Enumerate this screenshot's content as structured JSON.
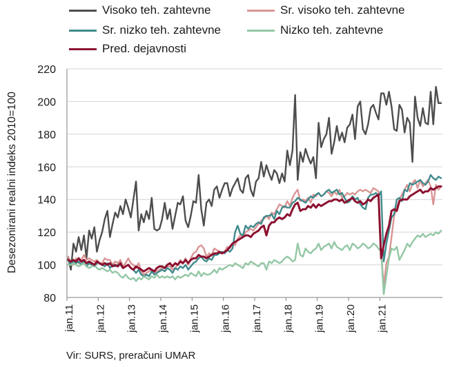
{
  "chart_data": {
    "type": "line",
    "ylabel": "Desezonirani realni indeks 2010=100",
    "source": "Vir: SURS, preračuni UMAR",
    "ylim": [
      80,
      220
    ],
    "yticks": [
      "80",
      "100",
      "120",
      "140",
      "160",
      "180",
      "200",
      "220"
    ],
    "xlim": [
      "jan.11",
      "dec.21"
    ],
    "xtick_labels": [
      "jan.11",
      "jan.12",
      "jan.13",
      "jan.14",
      "jan.15",
      "jan.16",
      "jan.17",
      "jan.18",
      "jan.19",
      "jan.20",
      "jan.21"
    ],
    "grid": true,
    "legend_position": "top",
    "series": [
      {
        "name": "Visoko teh. zahtevne",
        "color": "#4d4d4d",
        "values": [
          104,
          97,
          113,
          108,
          117,
          109,
          118,
          104,
          121,
          116,
          123,
          108,
          115,
          120,
          128,
          133,
          117,
          125,
          132,
          129,
          136,
          131,
          140,
          135,
          129,
          140,
          151,
          121,
          131,
          126,
          133,
          128,
          141,
          122,
          121,
          122,
          128,
          138,
          128,
          134,
          122,
          130,
          138,
          137,
          142,
          127,
          123,
          130,
          139,
          138,
          155,
          134,
          124,
          138,
          140,
          136,
          146,
          148,
          141,
          146,
          150,
          150,
          142,
          147,
          150,
          153,
          146,
          144,
          153,
          155,
          146,
          142,
          151,
          153,
          163,
          154,
          161,
          156,
          152,
          158,
          156,
          150,
          156,
          151,
          170,
          161,
          170,
          204,
          152,
          169,
          163,
          171,
          166,
          162,
          166,
          153,
          187,
          172,
          177,
          180,
          190,
          168,
          175,
          185,
          176,
          181,
          175,
          184,
          186,
          192,
          177,
          197,
          200,
          183,
          180,
          186,
          196,
          198,
          193,
          189,
          205,
          205,
          198,
          206,
          197,
          183,
          182,
          198,
          195,
          181,
          190,
          187,
          163,
          203,
          190,
          185,
          196,
          187,
          186,
          206,
          186,
          209,
          199,
          199
        ]
      },
      {
        "name": "Sr. visoko teh. zahtevne",
        "color": "#d99594",
        "values": [
          105,
          101,
          100,
          104,
          101,
          103,
          106,
          103,
          104,
          103,
          102,
          103,
          101,
          101,
          104,
          103,
          103,
          100,
          102,
          101,
          103,
          99,
          101,
          104,
          101,
          100,
          98,
          101,
          96,
          94,
          95,
          96,
          97,
          95,
          96,
          97,
          98,
          98,
          99,
          99,
          97,
          98,
          100,
          103,
          101,
          104,
          100,
          104,
          107,
          108,
          111,
          112,
          110,
          105,
          107,
          106,
          110,
          109,
          108,
          107,
          108,
          111,
          110,
          113,
          112,
          116,
          118,
          117,
          120,
          121,
          122,
          121,
          123,
          125,
          127,
          128,
          130,
          128,
          132,
          131,
          134,
          137,
          136,
          135,
          139,
          136,
          141,
          144,
          146,
          139,
          140,
          139,
          141,
          138,
          143,
          142,
          144,
          142,
          143,
          145,
          144,
          142,
          145,
          143,
          146,
          141,
          142,
          144,
          143,
          144,
          143,
          145,
          146,
          145,
          146,
          145,
          144,
          147,
          146,
          145,
          108,
          87,
          101,
          105,
          117,
          130,
          135,
          140,
          143,
          146,
          149,
          145,
          150,
          152,
          147,
          152,
          148,
          150,
          152,
          148,
          137,
          149,
          146,
          148
        ]
      },
      {
        "name": "Sr. nizko teh. zahtevne",
        "color": "#3f8a8c",
        "values": [
          103,
          100,
          102,
          101,
          102,
          100,
          102,
          99,
          101,
          100,
          99,
          101,
          101,
          100,
          99,
          101,
          98,
          100,
          99,
          100,
          100,
          98,
          99,
          100,
          98,
          97,
          95,
          97,
          94,
          93,
          94,
          93,
          96,
          94,
          95,
          96,
          97,
          96,
          98,
          97,
          95,
          98,
          97,
          99,
          98,
          100,
          97,
          99,
          101,
          102,
          104,
          105,
          103,
          102,
          104,
          103,
          106,
          106,
          107,
          108,
          107,
          109,
          108,
          110,
          120,
          124,
          119,
          118,
          124,
          122,
          124,
          123,
          125,
          126,
          125,
          129,
          130,
          130,
          131,
          128,
          133,
          131,
          135,
          136,
          135,
          135,
          138,
          139,
          141,
          140,
          139,
          138,
          140,
          142,
          141,
          143,
          144,
          142,
          143,
          145,
          146,
          144,
          145,
          146,
          143,
          144,
          141,
          138,
          139,
          142,
          140,
          141,
          137,
          135,
          134,
          141,
          143,
          143,
          144,
          142,
          145,
          102,
          113,
          121,
          129,
          131,
          140,
          141,
          139,
          146,
          145,
          150,
          149,
          150,
          151,
          152,
          150,
          149,
          151,
          155,
          153,
          152,
          154,
          153
        ]
      },
      {
        "name": "Nizko teh. zahtevne",
        "color": "#93c7a4",
        "values": [
          100,
          100,
          101,
          100,
          99,
          100,
          101,
          99,
          98,
          99,
          100,
          98,
          97,
          98,
          97,
          96,
          97,
          95,
          96,
          95,
          93,
          92,
          94,
          92,
          91,
          92,
          90,
          92,
          91,
          93,
          92,
          91,
          93,
          92,
          94,
          92,
          93,
          92,
          93,
          92,
          93,
          91,
          93,
          92,
          93,
          94,
          93,
          95,
          94,
          93,
          96,
          93,
          95,
          94,
          94,
          95,
          97,
          95,
          98,
          97,
          98,
          99,
          100,
          99,
          101,
          100,
          99,
          98,
          101,
          100,
          102,
          101,
          100,
          99,
          101,
          101,
          97,
          102,
          101,
          103,
          102,
          101,
          102,
          104,
          105,
          104,
          102,
          103,
          113,
          106,
          105,
          110,
          108,
          107,
          109,
          110,
          113,
          109,
          111,
          112,
          113,
          110,
          114,
          111,
          110,
          109,
          111,
          112,
          109,
          113,
          112,
          110,
          111,
          113,
          112,
          110,
          111,
          113,
          112,
          110,
          108,
          82,
          93,
          104,
          110,
          109,
          111,
          103,
          106,
          109,
          113,
          111,
          114,
          116,
          118,
          117,
          119,
          117,
          118,
          119,
          118,
          120,
          119,
          121
        ]
      },
      {
        "name": "Pred. dejavnosti",
        "color": "#8c1030",
        "values": [
          103,
          102,
          103,
          102,
          104,
          102,
          103,
          101,
          102,
          101,
          100,
          102,
          101,
          100,
          101,
          100,
          101,
          99,
          100,
          99,
          101,
          98,
          99,
          100,
          98,
          97,
          99,
          98,
          97,
          96,
          97,
          98,
          97,
          96,
          98,
          99,
          99,
          98,
          100,
          101,
          99,
          101,
          100,
          102,
          101,
          103,
          101,
          103,
          104,
          104,
          106,
          105,
          105,
          104,
          105,
          106,
          107,
          107,
          108,
          107,
          108,
          109,
          111,
          113,
          114,
          115,
          116,
          117,
          118,
          118,
          117,
          119,
          120,
          121,
          123,
          124,
          118,
          124,
          126,
          126,
          128,
          129,
          128,
          129,
          131,
          130,
          134,
          137,
          138,
          133,
          134,
          134,
          136,
          135,
          137,
          135,
          137,
          136,
          137,
          138,
          139,
          139,
          140,
          140,
          139,
          140,
          138,
          139,
          140,
          141,
          139,
          138,
          139,
          137,
          138,
          140,
          139,
          141,
          142,
          143,
          104,
          112,
          119,
          124,
          133,
          134,
          133,
          139,
          140,
          140,
          140,
          142,
          143,
          144,
          145,
          146,
          144,
          145,
          145,
          147,
          146,
          147,
          148,
          148
        ]
      }
    ]
  }
}
